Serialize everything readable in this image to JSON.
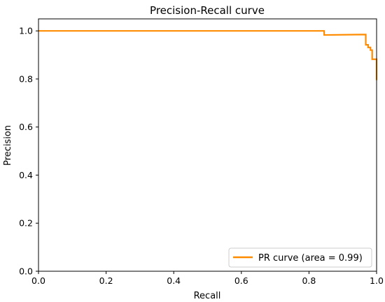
{
  "chart_data": {
    "type": "line",
    "title": "Precision-Recall curve",
    "xlabel": "Recall",
    "ylabel": "Precision",
    "xlim": [
      0.0,
      1.0
    ],
    "ylim": [
      0.0,
      1.05
    ],
    "xticks": [
      "0.0",
      "0.2",
      "0.4",
      "0.6",
      "0.8",
      "1.0"
    ],
    "yticks": [
      "0.0",
      "0.2",
      "0.4",
      "0.6",
      "0.8",
      "1.0"
    ],
    "grid": false,
    "legend_position": "lower-right",
    "series": [
      {
        "name": "PR curve (area = 0.99)",
        "color": "#ff8c00",
        "x": [
          0.0,
          0.845,
          0.845,
          0.968,
          0.968,
          0.975,
          0.975,
          0.982,
          0.982,
          0.987,
          0.987,
          1.0,
          1.0
        ],
        "y": [
          1.0,
          1.0,
          0.983,
          0.985,
          0.942,
          0.942,
          0.931,
          0.931,
          0.92,
          0.92,
          0.882,
          0.882,
          0.795
        ]
      }
    ]
  }
}
